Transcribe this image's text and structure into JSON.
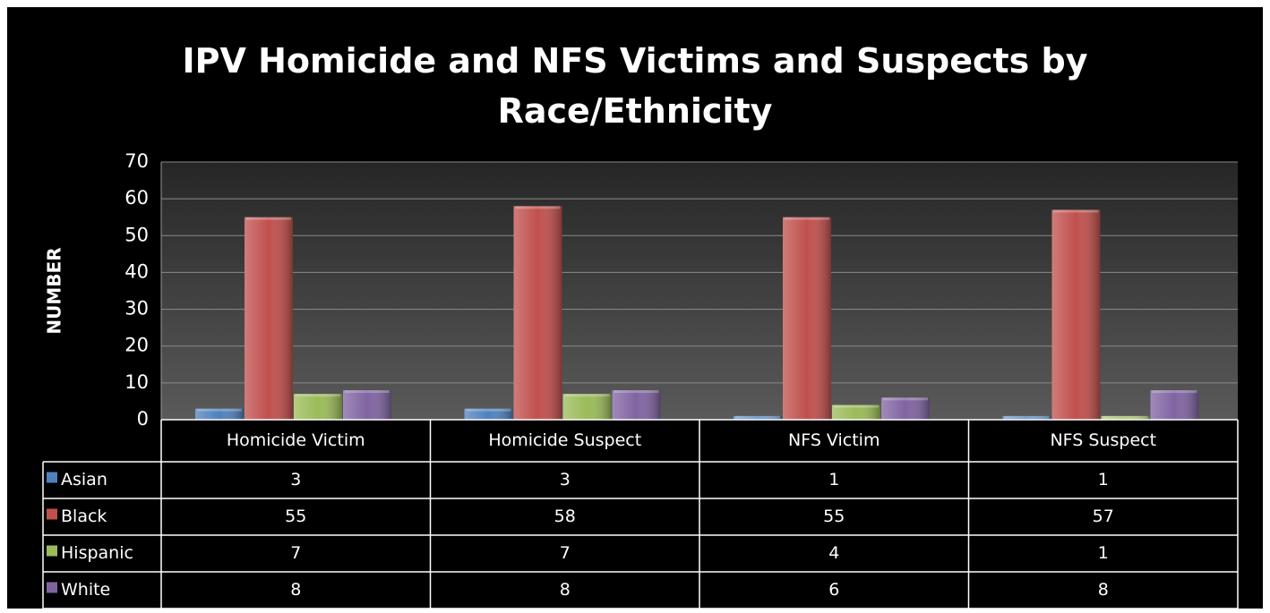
{
  "chart_data": {
    "type": "bar",
    "title": "IPV Homicide and NFS Victims and Suspects by Race/Ethnicity",
    "y_label": "NUMBER",
    "categories": [
      "Homicide Victim",
      "Homicide Suspect",
      "NFS Victim",
      "NFS Suspect"
    ],
    "series": [
      {
        "name": "Asian",
        "color": "#4f81bd",
        "values": [
          3,
          3,
          1,
          1
        ]
      },
      {
        "name": "Black",
        "color": "#c0504d",
        "values": [
          55,
          58,
          55,
          57
        ]
      },
      {
        "name": "Hispanic",
        "color": "#9bbb59",
        "values": [
          7,
          7,
          4,
          1
        ]
      },
      {
        "name": "White",
        "color": "#8064a2",
        "values": [
          8,
          8,
          6,
          8
        ]
      }
    ],
    "ylim": [
      0,
      70
    ],
    "yticks": [
      0,
      10,
      20,
      30,
      40,
      50,
      60,
      70
    ],
    "grid": true,
    "data_table": true
  }
}
